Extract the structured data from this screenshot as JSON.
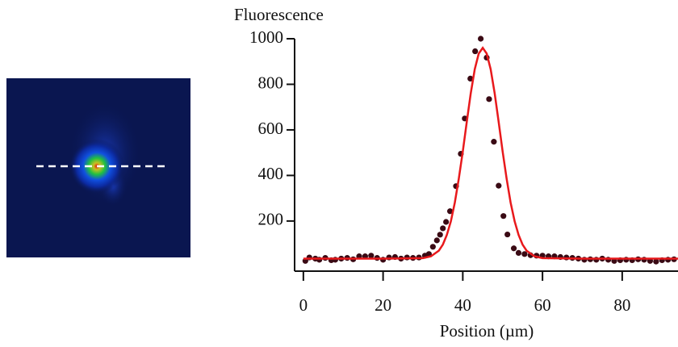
{
  "chart_data": {
    "type": "scatter",
    "y_label": "Fluorescence",
    "x_label": "Position (µm)",
    "xlim": [
      -2.2,
      94
    ],
    "ylim": [
      -20,
      1000
    ],
    "xticks": [
      0,
      20,
      40,
      60,
      80
    ],
    "yticks": [
      200,
      400,
      600,
      800,
      1000
    ],
    "series": [
      {
        "type": "scatter",
        "color": "#3a0a14",
        "x": [
          0.5,
          1.5,
          3,
          4,
          5.5,
          7,
          8,
          9.5,
          11,
          12.5,
          14,
          15.5,
          17,
          18.5,
          20,
          21.5,
          23,
          24.5,
          26,
          27.5,
          29,
          30.5,
          31.5,
          32.5,
          33.5,
          34.3,
          35,
          35.8,
          36.8,
          38.3,
          39.5,
          40.5,
          41.9,
          43.1,
          44.5,
          46,
          46.6,
          47.8,
          49,
          50.2,
          51.2,
          52.8,
          54,
          55.5,
          57,
          58.5,
          60,
          61.5,
          63,
          64.5,
          66,
          67.5,
          69,
          70.5,
          72,
          73.5,
          75,
          76.5,
          78,
          79.5,
          81,
          82.5,
          84,
          85.5,
          87,
          88.5,
          90,
          91.5,
          93
        ],
        "values": [
          25,
          40,
          35,
          30,
          38,
          28,
          30,
          35,
          38,
          32,
          45,
          45,
          48,
          38,
          30,
          40,
          42,
          35,
          40,
          38,
          40,
          48,
          55,
          87,
          115,
          140,
          168,
          196,
          243,
          353,
          495,
          650,
          825,
          945,
          1000,
          917,
          735,
          548,
          355,
          222,
          141,
          80,
          60,
          55,
          50,
          48,
          48,
          45,
          45,
          42,
          40,
          38,
          35,
          30,
          32,
          30,
          35,
          30,
          25,
          28,
          30,
          28,
          32,
          30,
          25,
          22,
          28,
          30,
          32
        ]
      },
      {
        "type": "line",
        "color": "#e8191c",
        "x": [
          0,
          10,
          20,
          30,
          32,
          34,
          35,
          36,
          37,
          38,
          39,
          40,
          41,
          42,
          43,
          44,
          45,
          46,
          47,
          48,
          49,
          50,
          51,
          52,
          53,
          54,
          55,
          56,
          58,
          60,
          70,
          80,
          94
        ],
        "values": [
          35,
          35,
          35,
          37,
          45,
          70,
          97,
          139,
          199,
          281,
          385,
          506,
          635,
          760,
          866,
          935,
          960,
          935,
          866,
          760,
          635,
          506,
          385,
          281,
          199,
          139,
          97,
          70,
          45,
          37,
          35,
          35,
          35
        ]
      }
    ]
  }
}
